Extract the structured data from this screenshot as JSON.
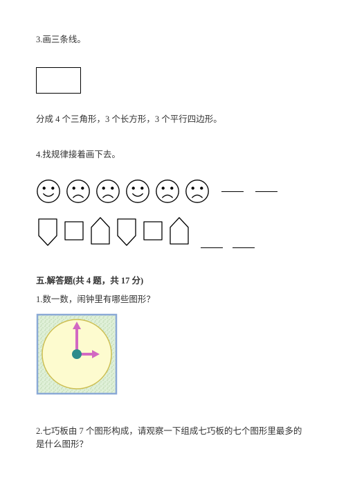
{
  "q3": {
    "title": "3.画三条线。",
    "rect_box": {
      "width": 65,
      "height": 38,
      "stroke": "#000000",
      "stroke_width": 1.2
    },
    "caption": "分成 4 个三角形，3 个长方形，3 个平行四边形。"
  },
  "q4": {
    "title": "4.找规律接着画下去。",
    "faces": {
      "count": 6,
      "pattern": [
        "happy",
        "sad",
        "sad",
        "happy",
        "sad",
        "sad"
      ],
      "size": 36,
      "stroke": "#000000",
      "stroke_width": 1.5,
      "face_fill": "#ffffff",
      "eye_radius": 2.4,
      "blank_count": 2
    },
    "shapes": {
      "count": 6,
      "pattern": [
        "down-pentagon",
        "square",
        "up-pentagon",
        "down-pentagon",
        "square",
        "up-pentagon"
      ],
      "unit_width": 34,
      "unit_height": 48,
      "stroke": "#000000",
      "stroke_width": 1.3,
      "fill": "#ffffff",
      "blank_count": 2
    }
  },
  "section5": {
    "title": "五.解答题(共 4 题，共 17 分)"
  },
  "q5_1": {
    "title": "1.数一数，闹钟里有哪些图形？",
    "clock": {
      "frame_size": 118,
      "frame_border_color": "#8aa9d6",
      "frame_fill": "#dff0d8",
      "frame_pattern_color": "#b7d3a8",
      "circle_fill": "#fdfbcf",
      "circle_stroke": "#cdbf52",
      "circle_r": 50,
      "hub_fill": "#2e8b8b",
      "hub_r": 7,
      "minute_hand_color": "#d268c2",
      "minute_hand_len": 38,
      "hour_hand_color": "#d268c2",
      "hour_hand_len": 24,
      "tri_fill": "#d268c2"
    }
  },
  "q5_2": {
    "title": "2.七巧板由 7 个图形构成，请观察一下组成七巧板的七个图形里最多的是什么图形？"
  },
  "colors": {
    "text": "#333333",
    "black": "#000000",
    "background": "#ffffff"
  }
}
